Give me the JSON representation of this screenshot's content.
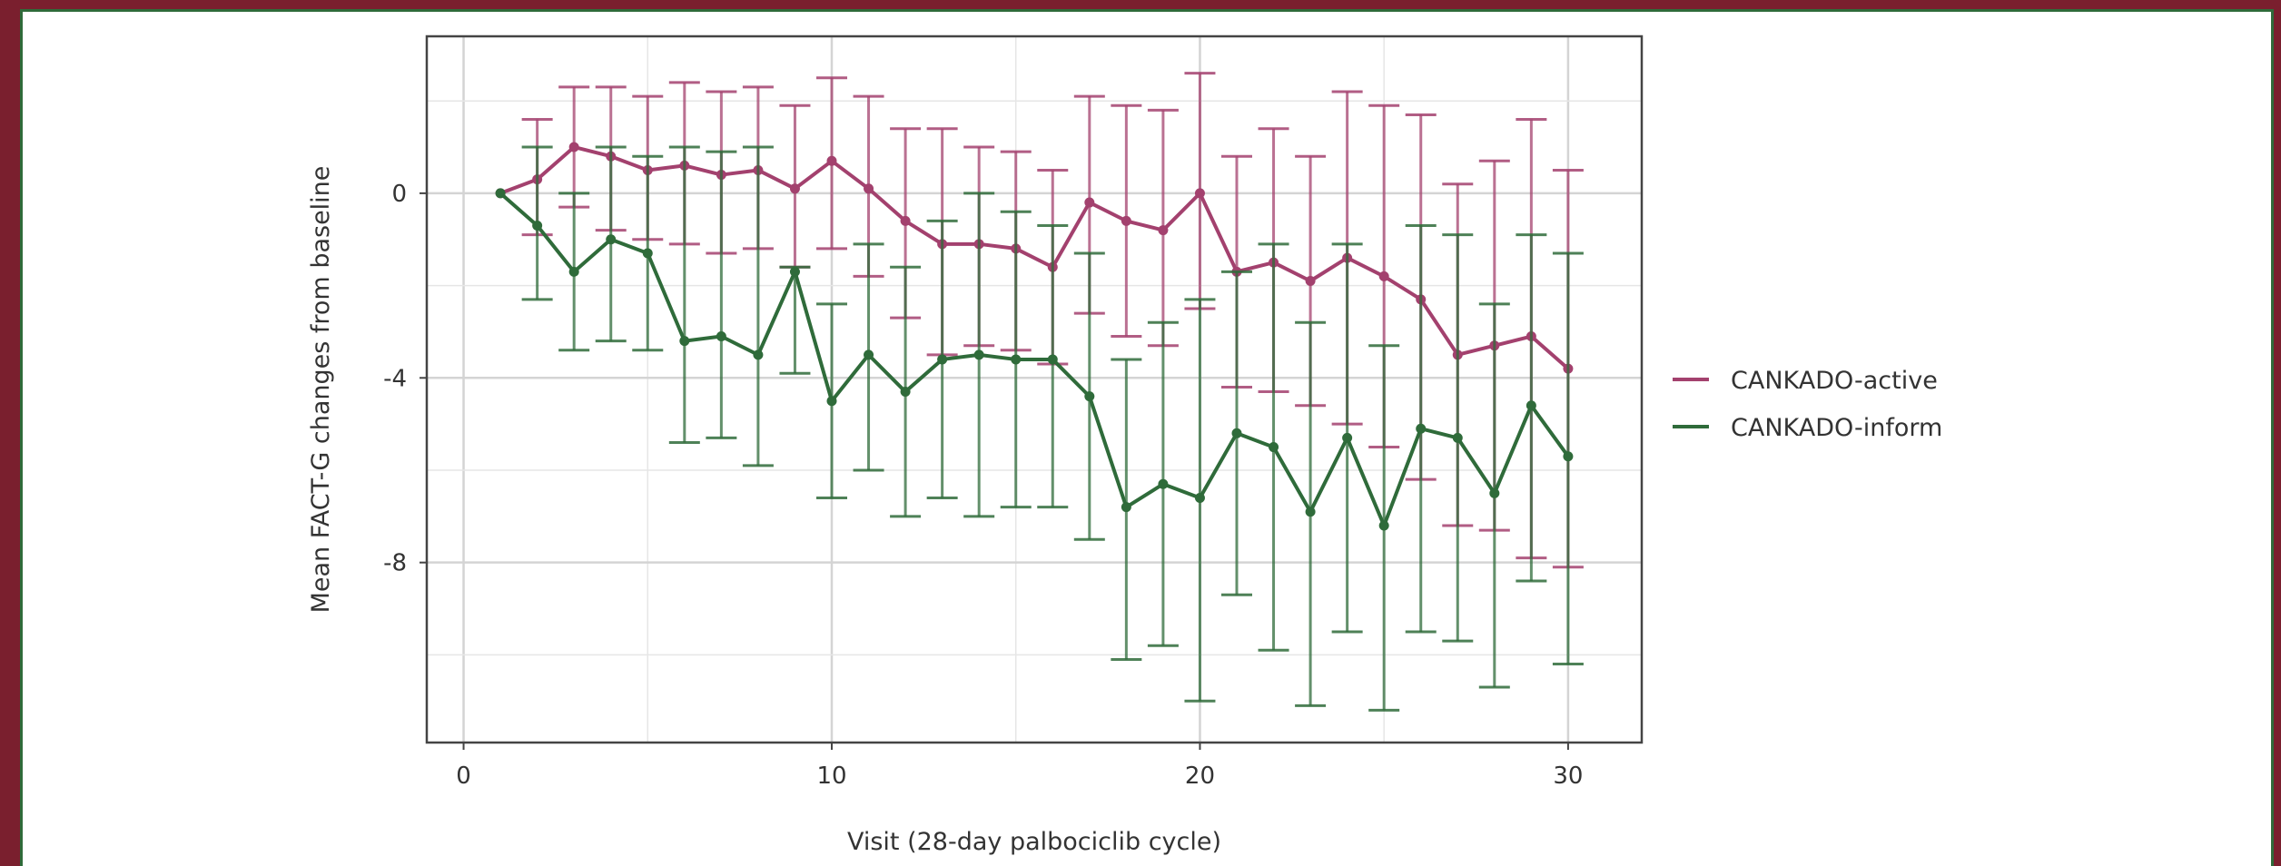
{
  "chart_data": {
    "type": "line",
    "xlabel": "Visit (28-day palbociclib cycle)",
    "ylabel": "Mean FACT-G changes from baseline",
    "xlim": [
      -1,
      32
    ],
    "ylim": [
      -11.9,
      3.4
    ],
    "xticks": [
      0,
      10,
      20,
      30
    ],
    "yticks": [
      0,
      -4,
      -8
    ],
    "grid": true,
    "legend_position": "right",
    "error_bars": true,
    "x": [
      1,
      2,
      3,
      4,
      5,
      6,
      7,
      8,
      9,
      10,
      11,
      12,
      13,
      14,
      15,
      16,
      17,
      18,
      19,
      20,
      21,
      22,
      23,
      24,
      25,
      26,
      27,
      28,
      29,
      30
    ],
    "series": [
      {
        "name": "CANKADO-active",
        "color": "#a3416e",
        "values": [
          0,
          0.3,
          1.0,
          0.8,
          0.5,
          0.6,
          0.4,
          0.5,
          0.1,
          0.7,
          0.1,
          -0.6,
          -1.1,
          -1.1,
          -1.2,
          -1.6,
          -0.2,
          -0.6,
          -0.8,
          0.0,
          -1.7,
          -1.5,
          -1.9,
          -1.4,
          -1.8,
          -2.3,
          -3.5,
          -3.3,
          -3.1,
          -3.8
        ],
        "upper": [
          0,
          1.6,
          2.3,
          2.3,
          2.1,
          2.4,
          2.2,
          2.3,
          1.9,
          2.5,
          2.1,
          1.4,
          1.4,
          1.0,
          0.9,
          0.5,
          2.1,
          1.9,
          1.8,
          2.6,
          0.8,
          1.4,
          0.8,
          2.2,
          1.9,
          1.7,
          0.2,
          0.7,
          1.6,
          0.5
        ],
        "lower": [
          0,
          -0.9,
          -0.3,
          -0.8,
          -1.0,
          -1.1,
          -1.3,
          -1.2,
          -1.6,
          -1.2,
          -1.8,
          -2.7,
          -3.5,
          -3.3,
          -3.4,
          -3.7,
          -2.6,
          -3.1,
          -3.3,
          -2.5,
          -4.2,
          -4.3,
          -4.6,
          -5.0,
          -5.5,
          -6.2,
          -7.2,
          -7.3,
          -7.9,
          -8.1
        ]
      },
      {
        "name": "CANKADO-inform",
        "color": "#2f6b3a",
        "values": [
          0,
          -0.7,
          -1.7,
          -1.0,
          -1.3,
          -3.2,
          -3.1,
          -3.5,
          -1.7,
          -4.5,
          -3.5,
          -4.3,
          -3.6,
          -3.5,
          -3.6,
          -3.6,
          -4.4,
          -6.8,
          -6.3,
          -6.6,
          -5.2,
          -5.5,
          -6.9,
          -5.3,
          -7.2,
          -5.1,
          -5.3,
          -6.5,
          -4.6,
          -5.7
        ],
        "upper": [
          0,
          1.0,
          0.0,
          1.0,
          0.8,
          1.0,
          0.9,
          1.0,
          -1.6,
          -2.4,
          -1.1,
          -1.6,
          -0.6,
          0.0,
          -0.4,
          -0.7,
          -1.3,
          -3.6,
          -2.8,
          -2.3,
          -1.7,
          -1.1,
          -2.8,
          -1.1,
          -3.3,
          -0.7,
          -0.9,
          -2.4,
          -0.9,
          -1.3
        ],
        "lower": [
          0,
          -2.3,
          -3.4,
          -3.2,
          -3.4,
          -5.4,
          -5.3,
          -5.9,
          -3.9,
          -6.6,
          -6.0,
          -7.0,
          -6.6,
          -7.0,
          -6.8,
          -6.8,
          -7.5,
          -10.1,
          -9.8,
          -11.0,
          -8.7,
          -9.9,
          -11.1,
          -9.5,
          -11.2,
          -9.5,
          -9.7,
          -10.7,
          -8.4,
          -10.2
        ]
      }
    ]
  }
}
